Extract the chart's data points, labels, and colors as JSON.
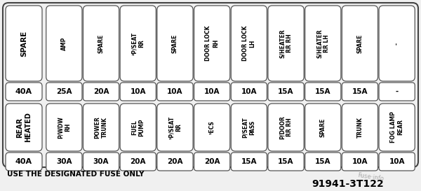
{
  "bg_color": "#f0f0f0",
  "title_note": "USE THE DESIGNATED FUSE ONLY",
  "part_number": "91941-3T122",
  "watermark": "Fuse·info",
  "left_fuses": [
    {
      "label": "SPARE",
      "amp": "40A"
    },
    {
      "label": "REAR\nHEATED",
      "amp": "40A"
    }
  ],
  "top_row_labels": [
    "AMP",
    "SPARE",
    "²P/SEAT\nRR",
    "SPARE",
    "DOOR LOCK\nRH",
    "DOOR LOCK\nLH",
    "S/HEATER\nRR RH",
    "S/HEATER\nRR LH",
    "SPARE",
    "-"
  ],
  "top_row_amps": [
    "25A",
    "20A",
    "10A",
    "10A",
    "10A",
    "10A",
    "15A",
    "15A",
    "15A",
    "-"
  ],
  "bot_row_labels": [
    "P/WDW\nRH",
    "POWER\nTRUNK",
    "FUEL\nPUMP",
    "¹P/SEAT\nRR",
    "¹ECS",
    "P/SEAT\nPASS",
    "P/DOOR\nRR RH",
    "SPARE",
    "TRUNK",
    "FOG LAMP\nREAR"
  ],
  "bot_row_amps": [
    "30A",
    "30A",
    "20A",
    "20A",
    "20A",
    "15A",
    "15A",
    "15A",
    "10A",
    "10A"
  ]
}
